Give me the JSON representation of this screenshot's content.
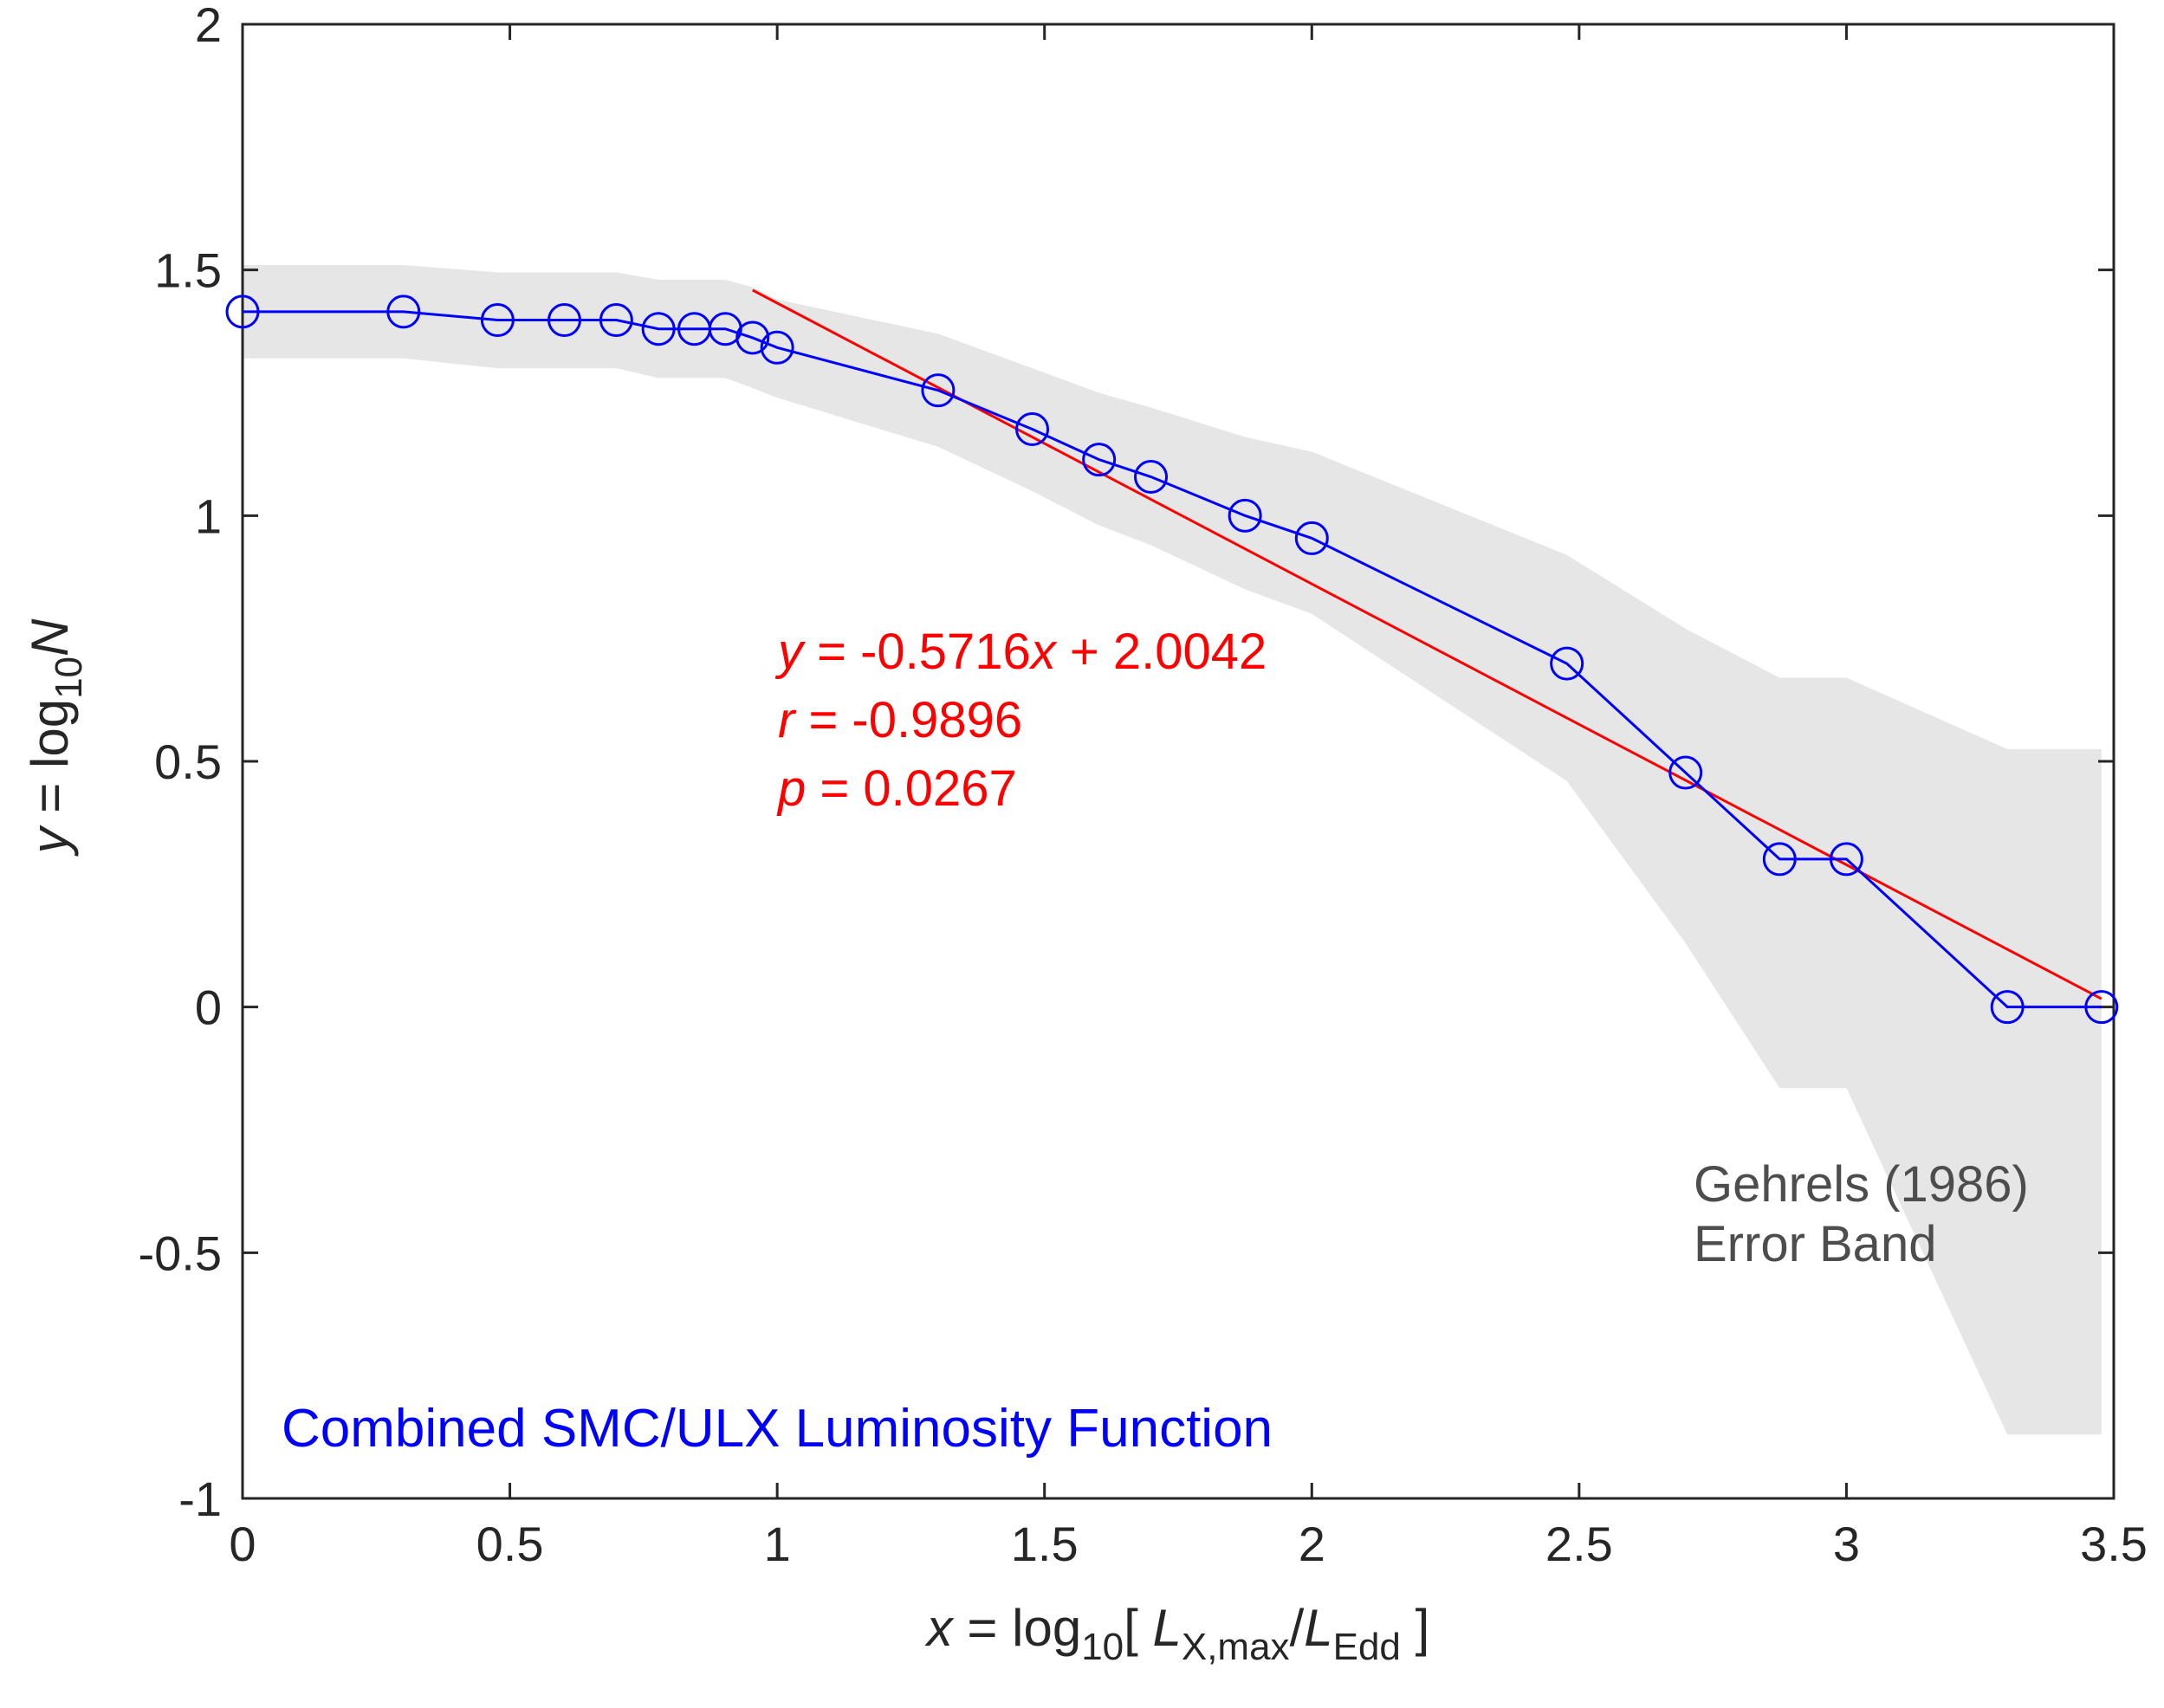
{
  "chart_data": {
    "type": "line",
    "title": "",
    "xlabel": {
      "var": "x",
      "eq": " = log",
      "sub": "10",
      "open": "[ ",
      "L1": "L",
      "L1sub": "X,max",
      "slash": "/",
      "L2": "L",
      "L2sub": "Edd",
      "close": " ]"
    },
    "ylabel": {
      "var": "y",
      "eq": " = log",
      "sub": "10",
      "N": "N"
    },
    "xlim": [
      0,
      3.5
    ],
    "ylim": [
      -1,
      2
    ],
    "xticks": [
      0,
      0.5,
      1,
      1.5,
      2,
      2.5,
      3,
      3.5
    ],
    "xtick_labels": [
      "0",
      "0.5",
      "1",
      "1.5",
      "2",
      "2.5",
      "3",
      "3.5"
    ],
    "yticks": [
      -1,
      -0.5,
      0,
      0.5,
      1,
      1.5,
      2
    ],
    "ytick_labels": [
      "-1",
      "-0.5",
      "0",
      "0.5",
      "1",
      "1.5",
      "2"
    ],
    "series": [
      {
        "name": "Combined SMC/ULX Luminosity Function",
        "color": "#0000ff",
        "marker": "circle",
        "x": [
          0,
          0.301,
          0.477,
          0.602,
          0.699,
          0.778,
          0.845,
          0.903,
          0.954,
          1.0,
          1.301,
          1.477,
          1.602,
          1.699,
          1.875,
          2.0,
          2.477,
          2.699,
          2.875,
          3.0,
          3.301,
          3.477
        ],
        "y": [
          1.415,
          1.415,
          1.398,
          1.398,
          1.398,
          1.38,
          1.38,
          1.38,
          1.362,
          1.342,
          1.255,
          1.176,
          1.114,
          1.079,
          1.0,
          0.954,
          0.699,
          0.477,
          0.301,
          0.301,
          0.0,
          0.0
        ]
      }
    ],
    "fit": {
      "name": "linear fit",
      "color": "#ff0000",
      "slope": -0.5716,
      "intercept": 2.0042,
      "x_range": [
        0.954,
        3.477
      ]
    },
    "error_band": {
      "name": "Gehrels (1986) Error Band",
      "color": "#e6e6e6",
      "x": [
        0,
        0.301,
        0.477,
        0.602,
        0.699,
        0.778,
        0.845,
        0.903,
        0.954,
        1.0,
        1.301,
        1.477,
        1.602,
        1.699,
        1.875,
        2.0,
        2.477,
        2.699,
        2.875,
        3.0,
        3.301,
        3.477
      ],
      "upper": [
        1.51,
        1.51,
        1.495,
        1.495,
        1.495,
        1.48,
        1.48,
        1.48,
        1.465,
        1.44,
        1.37,
        1.3,
        1.25,
        1.22,
        1.16,
        1.13,
        0.92,
        0.77,
        0.67,
        0.67,
        0.525,
        0.525
      ],
      "lower": [
        1.32,
        1.32,
        1.3,
        1.3,
        1.3,
        1.28,
        1.28,
        1.28,
        1.26,
        1.24,
        1.14,
        1.05,
        0.98,
        0.94,
        0.85,
        0.8,
        0.46,
        0.13,
        -0.165,
        -0.165,
        -0.87,
        -0.87
      ]
    },
    "annotations": {
      "fit_eq": {
        "y": "y",
        "mid": " = -0.5716",
        "x": "x",
        "rest": " + 2.0042"
      },
      "r_line": {
        "var": "r",
        "rest": " = -0.9896"
      },
      "p_line": {
        "var": "p",
        "rest": " = 0.0267"
      },
      "band_line1": "Gehrels (1986)",
      "band_line2": "Error Band",
      "series_label": "Combined SMC/ULX Luminosity Function"
    }
  }
}
